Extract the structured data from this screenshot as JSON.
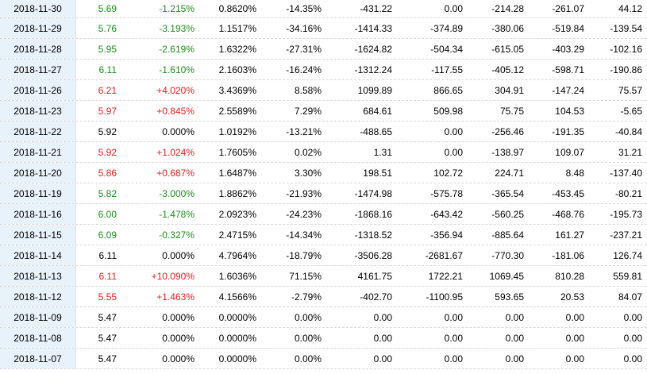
{
  "colors": {
    "up": "#e02020",
    "down": "#1e8c1e",
    "flat": "#000000",
    "date_bg": "#e8f2fb"
  },
  "rows": [
    {
      "date": "2018-11-30",
      "dir": "down",
      "cols": [
        "5.69",
        "-1.215%",
        "0.8620%",
        "-14.35%",
        "-431.22",
        "0.00",
        "-214.28",
        "-261.07",
        "44.12"
      ]
    },
    {
      "date": "2018-11-29",
      "dir": "down",
      "cols": [
        "5.76",
        "-3.193%",
        "1.1517%",
        "-34.16%",
        "-1414.33",
        "-374.89",
        "-380.06",
        "-519.84",
        "-139.54"
      ]
    },
    {
      "date": "2018-11-28",
      "dir": "down",
      "cols": [
        "5.95",
        "-2.619%",
        "1.6322%",
        "-27.31%",
        "-1624.82",
        "-504.34",
        "-615.05",
        "-403.29",
        "-102.16"
      ]
    },
    {
      "date": "2018-11-27",
      "dir": "down",
      "cols": [
        "6.11",
        "-1.610%",
        "2.1603%",
        "-16.24%",
        "-1312.24",
        "-117.55",
        "-405.12",
        "-598.71",
        "-190.86"
      ]
    },
    {
      "date": "2018-11-26",
      "dir": "up",
      "cols": [
        "6.21",
        "+4.020%",
        "3.4369%",
        "8.58%",
        "1099.89",
        "866.65",
        "304.91",
        "-147.24",
        "75.57"
      ]
    },
    {
      "date": "2018-11-23",
      "dir": "up",
      "cols": [
        "5.97",
        "+0.845%",
        "2.5589%",
        "7.29%",
        "684.61",
        "509.98",
        "75.75",
        "104.53",
        "-5.65"
      ]
    },
    {
      "date": "2018-11-22",
      "dir": "flat",
      "cols": [
        "5.92",
        "0.000%",
        "1.0192%",
        "-13.21%",
        "-488.65",
        "0.00",
        "-256.46",
        "-191.35",
        "-40.84"
      ]
    },
    {
      "date": "2018-11-21",
      "dir": "up",
      "cols": [
        "5.92",
        "+1.024%",
        "1.7605%",
        "0.02%",
        "1.31",
        "0.00",
        "-138.97",
        "109.07",
        "31.21"
      ]
    },
    {
      "date": "2018-11-20",
      "dir": "up",
      "cols": [
        "5.86",
        "+0.687%",
        "1.6487%",
        "3.30%",
        "198.51",
        "102.72",
        "224.71",
        "8.48",
        "-137.40"
      ]
    },
    {
      "date": "2018-11-19",
      "dir": "down",
      "cols": [
        "5.82",
        "-3.000%",
        "1.8862%",
        "-21.93%",
        "-1474.98",
        "-575.78",
        "-365.54",
        "-453.45",
        "-80.21"
      ]
    },
    {
      "date": "2018-11-16",
      "dir": "down",
      "cols": [
        "6.00",
        "-1.478%",
        "2.0923%",
        "-24.23%",
        "-1868.16",
        "-643.42",
        "-560.25",
        "-468.76",
        "-195.73"
      ]
    },
    {
      "date": "2018-11-15",
      "dir": "down",
      "cols": [
        "6.09",
        "-0.327%",
        "2.4715%",
        "-14.34%",
        "-1318.52",
        "-356.94",
        "-885.64",
        "161.27",
        "-237.21"
      ]
    },
    {
      "date": "2018-11-14",
      "dir": "flat",
      "cols": [
        "6.11",
        "0.000%",
        "4.7964%",
        "-18.79%",
        "-3506.28",
        "-2681.67",
        "-770.30",
        "-181.06",
        "126.74"
      ]
    },
    {
      "date": "2018-11-13",
      "dir": "up",
      "cols": [
        "6.11",
        "+10.090%",
        "1.6036%",
        "71.15%",
        "4161.75",
        "1722.21",
        "1069.45",
        "810.28",
        "559.81"
      ]
    },
    {
      "date": "2018-11-12",
      "dir": "up",
      "cols": [
        "5.55",
        "+1.463%",
        "4.1566%",
        "-2.79%",
        "-402.70",
        "-1100.95",
        "593.65",
        "20.53",
        "84.07"
      ]
    },
    {
      "date": "2018-11-09",
      "dir": "flat",
      "cols": [
        "5.47",
        "0.000%",
        "0.0000%",
        "0.00%",
        "0.00",
        "0.00",
        "0.00",
        "0.00",
        "0.00"
      ]
    },
    {
      "date": "2018-11-08",
      "dir": "flat",
      "cols": [
        "5.47",
        "0.000%",
        "0.0000%",
        "0.00%",
        "0.00",
        "0.00",
        "0.00",
        "0.00",
        "0.00"
      ]
    },
    {
      "date": "2018-11-07",
      "dir": "flat",
      "cols": [
        "5.47",
        "0.000%",
        "0.0000%",
        "0.00%",
        "0.00",
        "0.00",
        "0.00",
        "0.00",
        "0.00"
      ]
    }
  ]
}
